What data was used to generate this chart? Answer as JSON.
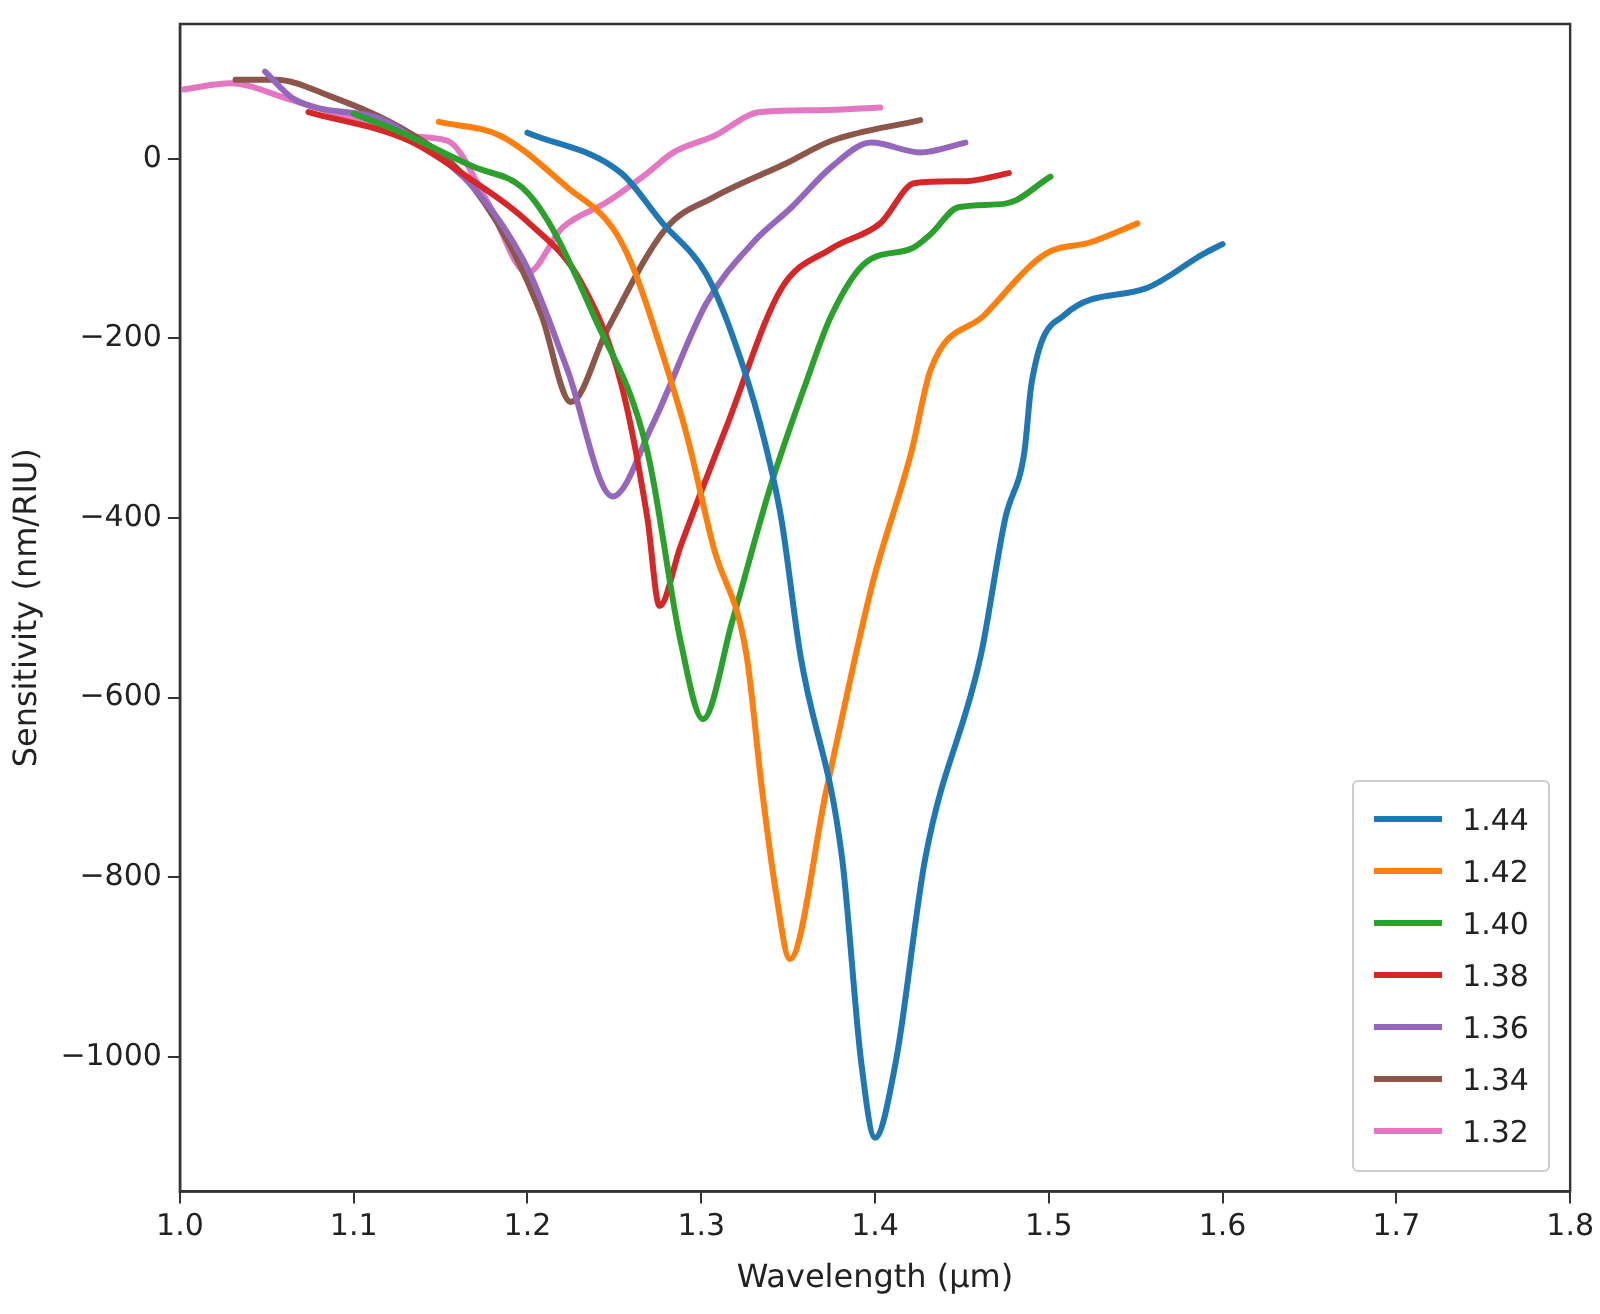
{
  "chart_data": {
    "type": "line",
    "xlabel": "Wavelength (μm)",
    "ylabel": "Sensitivity (nm/RIU)",
    "xlim": [
      1.0,
      1.8
    ],
    "ylim": [
      -1150,
      150
    ],
    "xticks": [
      {
        "value": 1.0,
        "label": "1.0"
      },
      {
        "value": 1.1,
        "label": "1.1"
      },
      {
        "value": 1.2,
        "label": "1.2"
      },
      {
        "value": 1.3,
        "label": "1.3"
      },
      {
        "value": 1.4,
        "label": "1.4"
      },
      {
        "value": 1.5,
        "label": "1.5"
      },
      {
        "value": 1.6,
        "label": "1.6"
      },
      {
        "value": 1.7,
        "label": "1.7"
      },
      {
        "value": 1.8,
        "label": "1.8"
      }
    ],
    "yticks": [
      {
        "value": -1000,
        "label": "−1000"
      },
      {
        "value": -800,
        "label": "−800"
      },
      {
        "value": -600,
        "label": "−600"
      },
      {
        "value": -400,
        "label": "−400"
      },
      {
        "value": -200,
        "label": "−200"
      },
      {
        "value": 0,
        "label": "0"
      }
    ],
    "grid": false,
    "legend": "bottom right",
    "marker": "none",
    "line_style": "solid",
    "series": [
      {
        "name": "1.44",
        "color": "#1f77b4",
        "x": [
          1.2,
          1.254,
          1.277,
          1.303,
          1.318,
          1.334,
          1.346,
          1.357,
          1.381,
          1.392,
          1.4,
          1.412,
          1.429,
          1.461,
          1.475,
          1.486,
          1.49,
          1.509,
          1.555,
          1.589,
          1.6
        ],
        "values": [
          29,
          -16,
          -70,
          -129,
          -197,
          -296,
          -400,
          -552,
          -778,
          -1005,
          -1090,
          -1005,
          -778,
          -552,
          -400,
          -326,
          -251,
          -174,
          -145,
          -106,
          -95
        ]
      },
      {
        "name": "1.42",
        "color": "#ff7f0e",
        "x": [
          1.149,
          1.185,
          1.223,
          1.249,
          1.261,
          1.277,
          1.292,
          1.307,
          1.326,
          1.335,
          1.343,
          1.351,
          1.372,
          1.398,
          1.421,
          1.432,
          1.463,
          1.498,
          1.524,
          1.551
        ],
        "values": [
          41,
          25,
          -32,
          -77,
          -122,
          -213,
          -310,
          -432,
          -552,
          -703,
          -817,
          -891,
          -703,
          -477,
          -326,
          -235,
          -174,
          -106,
          -93,
          -72
        ]
      },
      {
        "name": "1.40",
        "color": "#2ca02c",
        "x": [
          1.1,
          1.124,
          1.169,
          1.197,
          1.212,
          1.238,
          1.269,
          1.288,
          1.301,
          1.318,
          1.34,
          1.36,
          1.375,
          1.395,
          1.421,
          1.432,
          1.448,
          1.475,
          1.501
        ],
        "values": [
          50,
          32,
          -9,
          -32,
          -70,
          -174,
          -326,
          -536,
          -624,
          -514,
          -364,
          -251,
          -174,
          -115,
          -100,
          -84,
          -54,
          -50,
          -20
        ]
      },
      {
        "name": "1.38",
        "color": "#d62728",
        "x": [
          1.074,
          1.132,
          1.169,
          1.2,
          1.231,
          1.254,
          1.269,
          1.276,
          1.288,
          1.315,
          1.346,
          1.375,
          1.403,
          1.423,
          1.452,
          1.477
        ],
        "values": [
          52,
          20,
          -25,
          -70,
          -138,
          -251,
          -400,
          -498,
          -432,
          -296,
          -145,
          -100,
          -72,
          -27,
          -25,
          -16
        ]
      },
      {
        "name": "1.36",
        "color": "#9467bd",
        "x": [
          1.049,
          1.066,
          1.117,
          1.14,
          1.169,
          1.2,
          1.223,
          1.249,
          1.272,
          1.303,
          1.33,
          1.352,
          1.375,
          1.398,
          1.426,
          1.452
        ],
        "values": [
          97,
          66,
          43,
          14,
          -32,
          -122,
          -235,
          -376,
          -296,
          -161,
          -93,
          -54,
          -9,
          18,
          7,
          18
        ]
      },
      {
        "name": "1.34",
        "color": "#8c564b",
        "x": [
          1.032,
          1.055,
          1.086,
          1.132,
          1.162,
          1.189,
          1.208,
          1.225,
          1.246,
          1.28,
          1.307,
          1.349,
          1.375,
          1.426
        ],
        "values": [
          88,
          88,
          70,
          29,
          -16,
          -93,
          -174,
          -271,
          -190,
          -77,
          -43,
          -5,
          20,
          43
        ]
      },
      {
        "name": "1.32",
        "color": "#e377c2",
        "x": [
          1.002,
          1.029,
          1.063,
          1.105,
          1.132,
          1.154,
          1.177,
          1.2,
          1.22,
          1.246,
          1.269,
          1.284,
          1.307,
          1.334,
          1.368,
          1.403
        ],
        "values": [
          77,
          84,
          66,
          41,
          25,
          20,
          -48,
          -127,
          -77,
          -48,
          -16,
          7,
          25,
          52,
          54,
          57
        ]
      }
    ]
  }
}
